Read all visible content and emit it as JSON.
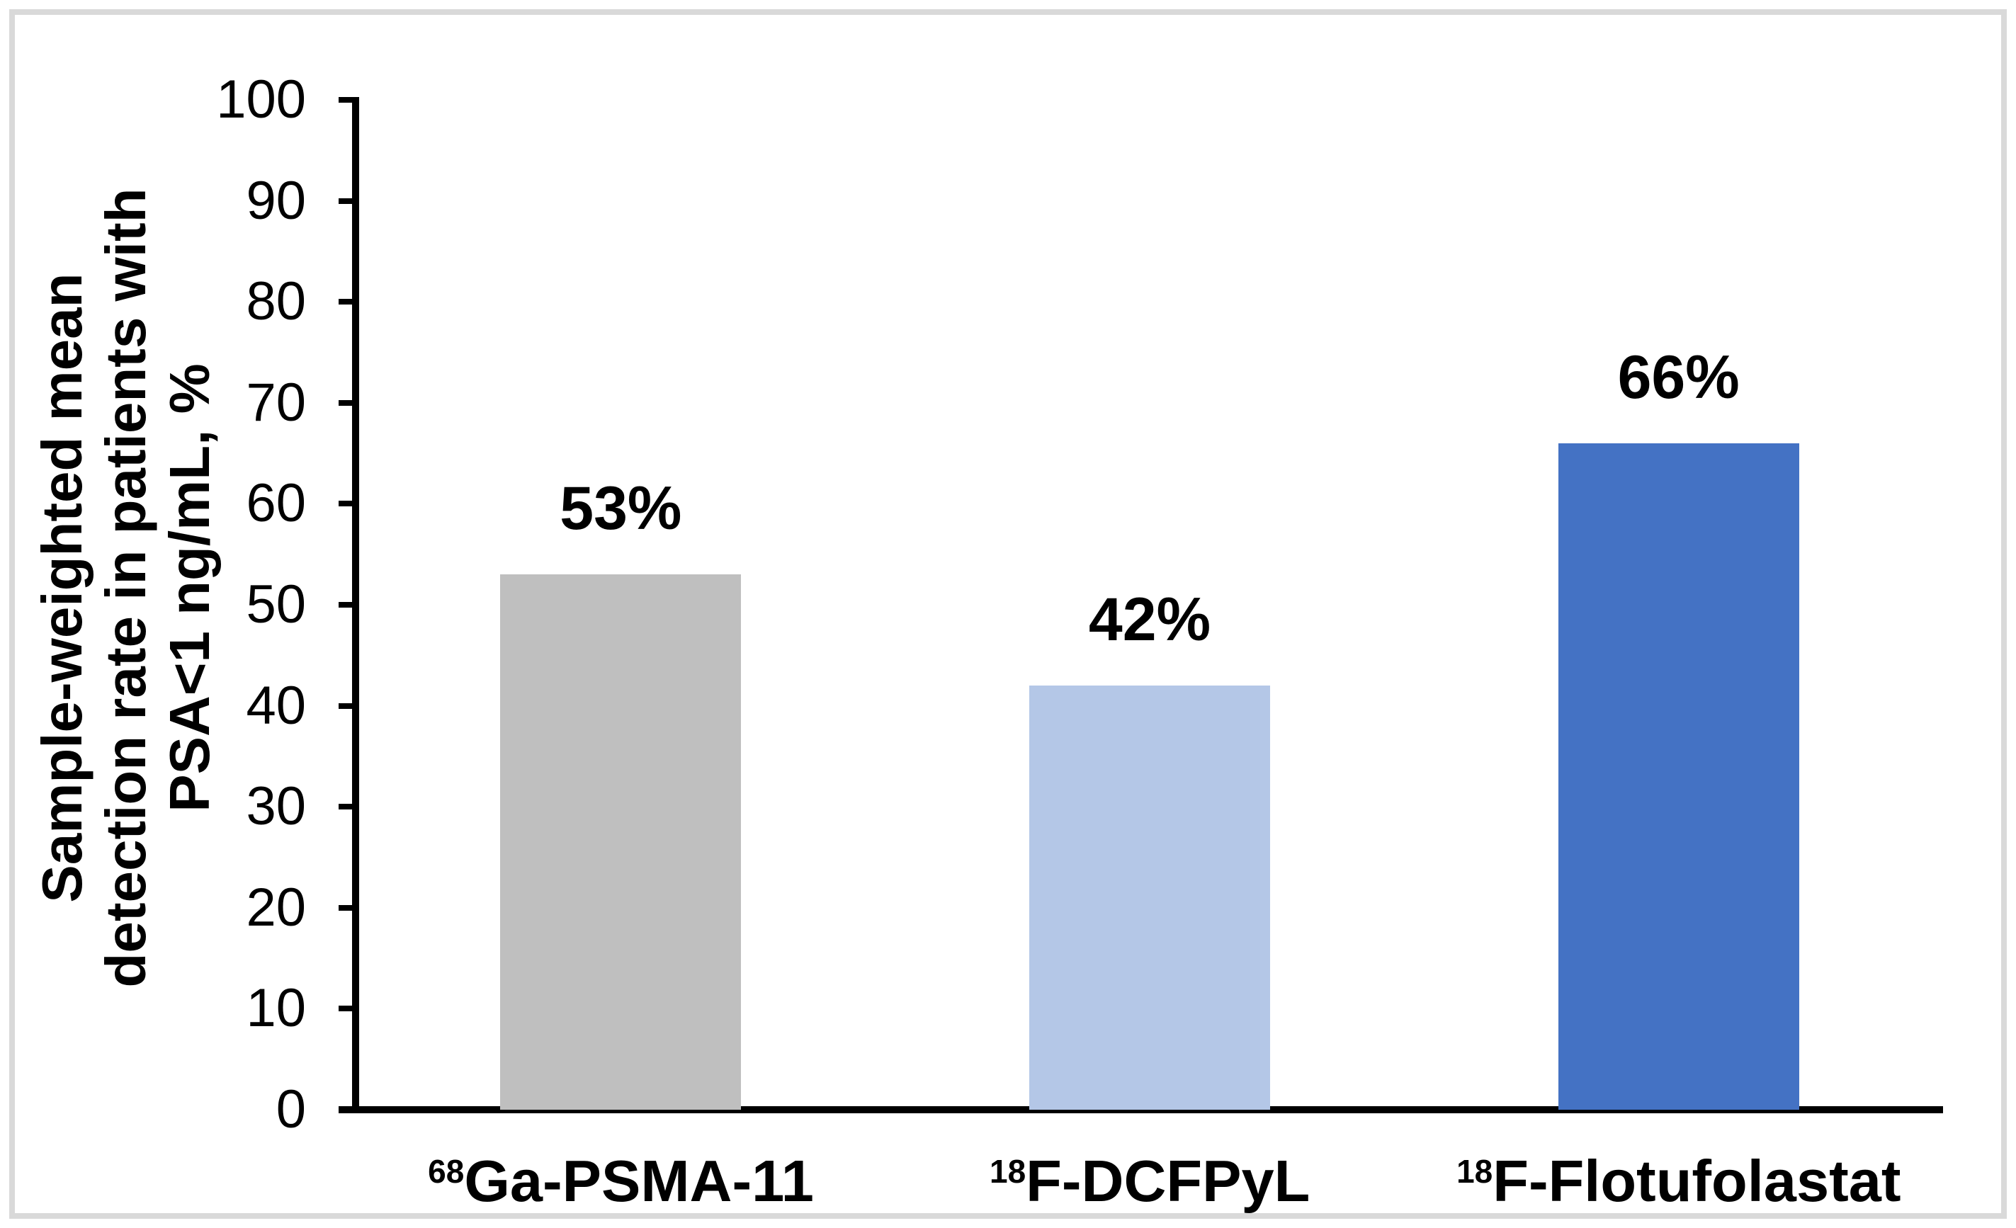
{
  "chart_data": {
    "type": "bar",
    "title": "",
    "ylabel": "Sample-weighted mean detection rate in patients with PSA<1 ng/mL, %",
    "ylabel_lines": [
      "Sample-weighted mean",
      "detection rate in patients with",
      "PSA<1 ng/mL, %"
    ],
    "xlabel": "",
    "ylim": [
      0,
      100
    ],
    "yticks": [
      0,
      10,
      20,
      30,
      40,
      50,
      60,
      70,
      80,
      90,
      100
    ],
    "grid": false,
    "legend": false,
    "categories": [
      {
        "isotope_superscript": "68",
        "name": "Ga-PSMA-11",
        "value": 53,
        "data_label": "53%",
        "color": "#BFBFBF"
      },
      {
        "isotope_superscript": "18",
        "name": "F-DCFPyL",
        "value": 42,
        "data_label": "42%",
        "color": "#B4C7E7"
      },
      {
        "isotope_superscript": "18",
        "name": "F-Flotufolastat",
        "value": 66,
        "data_label": "66%",
        "color": "#4472C4"
      }
    ],
    "colors": {
      "axis": "#000000",
      "text": "#000000",
      "frame_border": "#D9D9D9",
      "background": "#FFFFFF"
    }
  }
}
